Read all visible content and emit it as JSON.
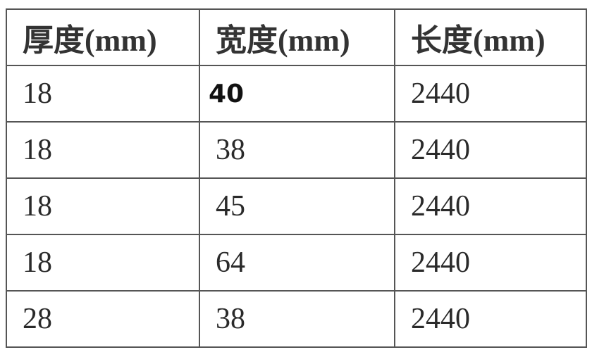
{
  "table": {
    "headers": [
      "厚度(mm)",
      "宽度(mm)",
      "长度(mm)"
    ],
    "rows": [
      [
        "18",
        "40",
        "2440"
      ],
      [
        "18",
        "38",
        "2440"
      ],
      [
        "18",
        "45",
        "2440"
      ],
      [
        "18",
        "64",
        "2440"
      ],
      [
        "28",
        "38",
        "2440"
      ]
    ]
  }
}
